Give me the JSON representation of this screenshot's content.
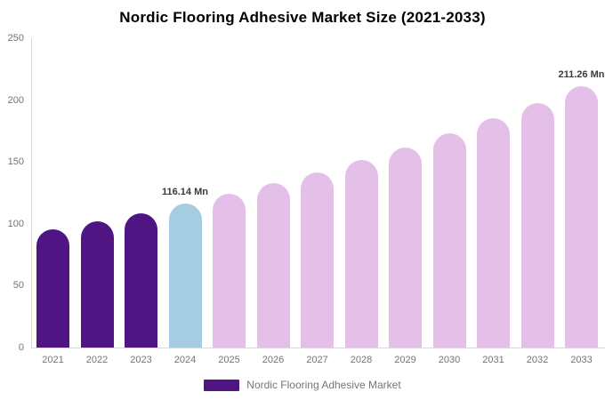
{
  "chart_data": {
    "type": "bar",
    "title": "Nordic Flooring Adhesive Market Size (2021-2033)",
    "categories": [
      "2021",
      "2022",
      "2023",
      "2024",
      "2025",
      "2026",
      "2027",
      "2028",
      "2029",
      "2030",
      "2031",
      "2032",
      "2033"
    ],
    "values": [
      95.2,
      101.7,
      108.7,
      116.14,
      124.1,
      132.7,
      141.8,
      151.5,
      161.9,
      173.1,
      185.0,
      197.7,
      211.26
    ],
    "unit": "Mn",
    "ylim": [
      0,
      250
    ],
    "yticks": [
      0,
      50,
      100,
      150,
      200,
      250
    ],
    "grid": false,
    "legend_position": "bottom",
    "point_colors": [
      "#4f1582",
      "#4f1582",
      "#4f1582",
      "#a6cce1",
      "#e4c0e9",
      "#e4c0e9",
      "#e4c0e9",
      "#e4c0e9",
      "#e4c0e9",
      "#e4c0e9",
      "#e4c0e9",
      "#e4c0e9",
      "#e4c0e9"
    ],
    "annotations": [
      {
        "index": 3,
        "text": "116.14 Mn"
      },
      {
        "index": 12,
        "text": "211.26 Mn"
      }
    ],
    "legend": [
      {
        "label": "Nordic Flooring Adhesive Market",
        "color": "#4f1582"
      }
    ],
    "colors": {
      "historical_bar": "#4f1582",
      "highlight_bar": "#a6cce1",
      "forecast_bar": "#e4c0e9",
      "axis_line": "#d8d8d8",
      "tick_text": "#747474",
      "annotation_text": "#3a3a3a"
    }
  }
}
